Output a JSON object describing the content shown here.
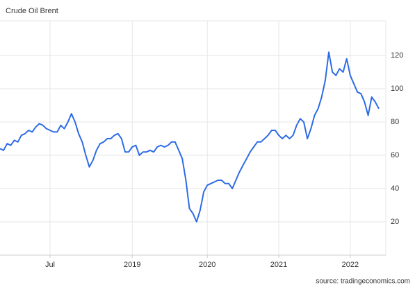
{
  "chart_data": {
    "type": "line",
    "title": "Crude Oil Brent",
    "source": "source: tradingeconomics.com",
    "values": [
      64,
      63,
      67,
      66,
      69,
      68,
      72,
      73,
      75,
      74,
      77,
      79,
      78,
      76,
      75,
      74,
      74,
      78,
      76,
      80,
      85,
      80,
      73,
      68,
      60,
      53,
      57,
      63,
      67,
      68,
      70,
      70,
      72,
      73,
      70,
      62,
      62,
      65,
      66,
      60,
      62,
      62,
      63,
      62,
      65,
      66,
      65,
      66,
      68,
      68,
      63,
      58,
      45,
      28,
      25,
      20,
      27,
      38,
      42,
      43,
      44,
      45,
      45,
      43,
      43,
      40,
      45,
      50,
      54,
      58,
      62,
      65,
      68,
      68,
      70,
      72,
      75,
      75,
      72,
      70,
      72,
      70,
      72,
      78,
      82,
      80,
      70,
      76,
      84,
      88,
      95,
      105,
      122,
      110,
      108,
      112,
      110,
      118,
      108,
      103,
      98,
      97,
      92,
      84,
      95,
      92,
      88
    ],
    "color": "#2d6be6",
    "xlim": [
      0,
      106
    ],
    "xticks": [
      {
        "value": 14,
        "label": "Jul"
      },
      {
        "value": 37,
        "label": "2019"
      },
      {
        "value": 58,
        "label": "2020"
      },
      {
        "value": 78,
        "label": "2021"
      },
      {
        "value": 98,
        "label": "2022"
      }
    ],
    "ylim": [
      0,
      140
    ],
    "yticks": [
      20,
      40,
      60,
      80,
      100,
      120
    ],
    "grid": true
  }
}
